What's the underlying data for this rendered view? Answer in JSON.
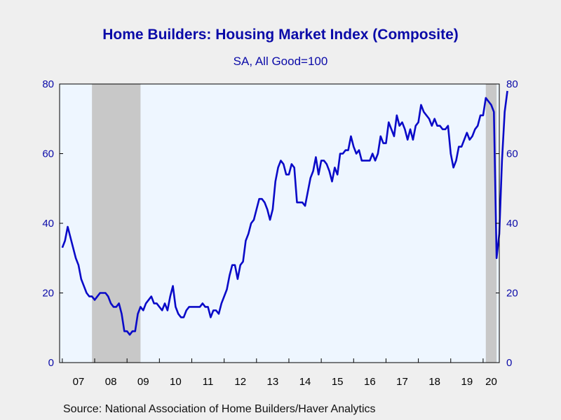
{
  "title": "Home Builders: Housing Market Index (Composite)",
  "subtitle": "SA, All Good=100",
  "source": "Source:  National Association of Home Builders/Haver Analytics",
  "colors": {
    "line": "#0a0ac8",
    "plot_background": "#eef6ff",
    "recession_shade": "#c8c8c8",
    "text": "#0a0aa8"
  },
  "chart_data": {
    "type": "line",
    "title": "Home Builders: Housing Market Index (Composite)",
    "subtitle": "SA, All Good=100",
    "xlabel": "",
    "ylabel": "",
    "ylim": [
      0,
      80
    ],
    "xlim": [
      "2006-12",
      "2020-07"
    ],
    "yticks": [
      0,
      20,
      40,
      60,
      80
    ],
    "xtick_labels": [
      "07",
      "08",
      "09",
      "10",
      "11",
      "12",
      "13",
      "14",
      "15",
      "16",
      "17",
      "18",
      "19",
      "20"
    ],
    "grid": false,
    "y_axis_on_both_sides": true,
    "recession_shading": [
      {
        "start": "2007-12",
        "end": "2009-06"
      },
      {
        "start": "2020-02",
        "end": "2020-06"
      }
    ],
    "series": [
      {
        "start": "2007-01",
        "frequency": "monthly",
        "values": [
          33,
          35,
          39,
          36,
          33,
          30,
          28,
          24,
          22,
          20,
          19,
          19,
          18,
          19,
          20,
          20,
          20,
          19,
          17,
          16,
          16,
          17,
          14,
          9,
          9,
          8,
          9,
          9,
          14,
          16,
          15,
          17,
          18,
          19,
          17,
          17,
          16,
          15,
          17,
          15,
          19,
          22,
          16,
          14,
          13,
          13,
          15,
          16,
          16,
          16,
          16,
          16,
          17,
          16,
          16,
          13,
          15,
          15,
          14,
          17,
          19,
          21,
          25,
          28,
          28,
          24,
          28,
          29,
          35,
          37,
          40,
          41,
          44,
          47,
          47,
          46,
          44,
          41,
          44,
          52,
          56,
          58,
          57,
          54,
          54,
          57,
          56,
          46,
          46,
          46,
          45,
          49,
          53,
          55,
          59,
          54,
          58,
          58,
          57,
          55,
          52,
          56,
          54,
          60,
          60,
          61,
          61,
          65,
          62,
          60,
          61,
          58,
          58,
          58,
          58,
          60,
          58,
          60,
          65,
          63,
          63,
          69,
          67,
          65,
          71,
          68,
          69,
          67,
          64,
          67,
          64,
          68,
          69,
          74,
          72,
          71,
          70,
          68,
          70,
          68,
          68,
          67,
          67,
          68,
          60,
          56,
          58,
          62,
          62,
          64,
          66,
          64,
          65,
          67,
          68,
          71,
          71,
          76,
          75,
          74,
          72,
          30,
          37,
          58,
          72,
          78
        ]
      }
    ]
  }
}
